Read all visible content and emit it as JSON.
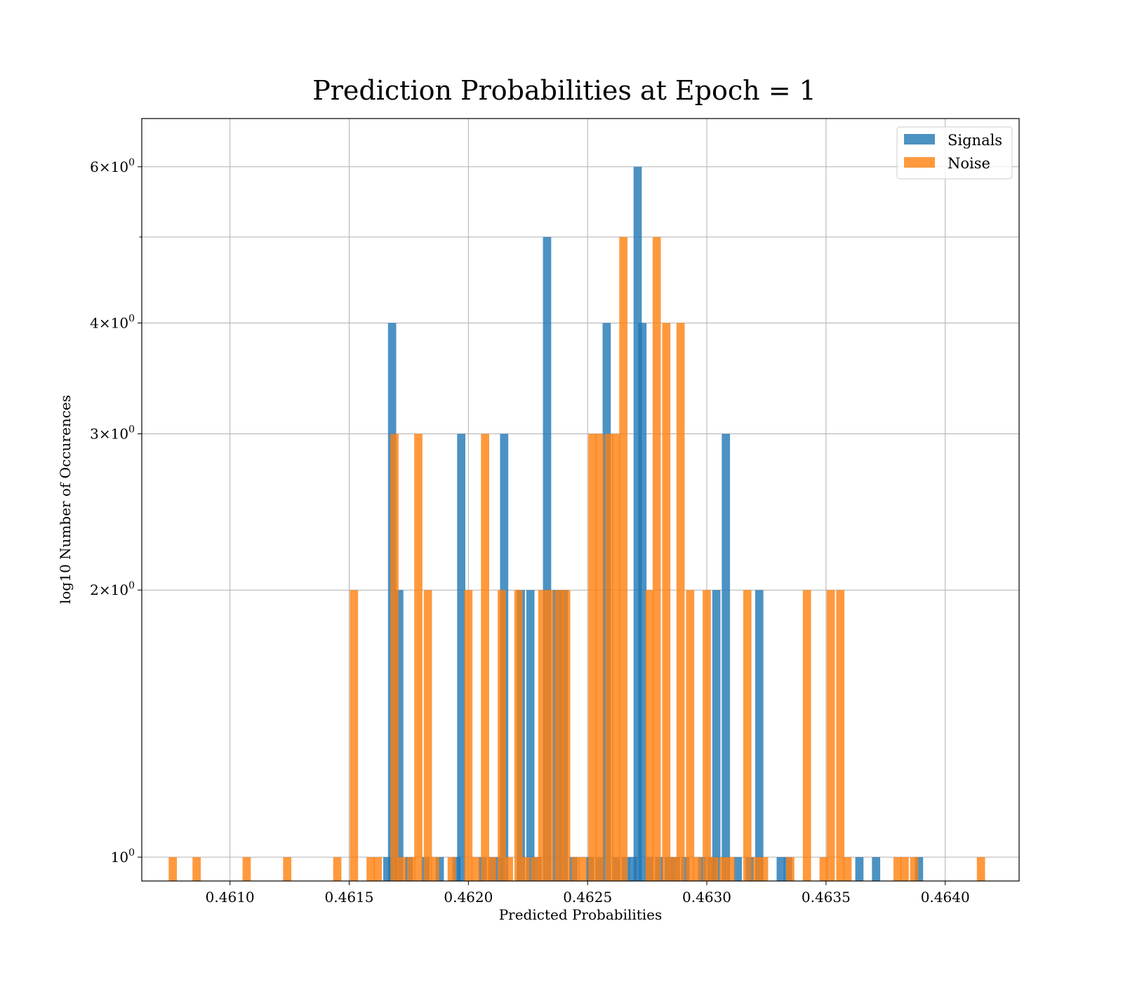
{
  "chart_data": {
    "type": "bar",
    "title": "Prediction Probabilities at Epoch = 1",
    "xlabel": "Predicted Probabilities",
    "ylabel": "log10 Number of Occurences",
    "x_scale": "linear",
    "y_scale": "log",
    "xlim": [
      0.46063,
      0.46431
    ],
    "ylim": [
      0.94,
      6.8
    ],
    "x_ticks": [
      0.461,
      0.4615,
      0.462,
      0.4625,
      0.463,
      0.4635,
      0.464
    ],
    "x_tick_labels": [
      "0.4610",
      "0.4615",
      "0.4620",
      "0.4625",
      "0.4630",
      "0.4635",
      "0.4640"
    ],
    "y_ticks": [
      1,
      2,
      3,
      4,
      6
    ],
    "y_tick_labels": [
      {
        "mantissa": "",
        "base": "10",
        "exp": "0"
      },
      {
        "mantissa": "2",
        "base": "10",
        "exp": "0"
      },
      {
        "mantissa": "3",
        "base": "10",
        "exp": "0"
      },
      {
        "mantissa": "4",
        "base": "10",
        "exp": "0"
      },
      {
        "mantissa": "6",
        "base": "10",
        "exp": "0"
      }
    ],
    "y_minor_ticks": [
      5
    ],
    "grid": true,
    "legend_position": "top-right",
    "series": [
      {
        "name": "Signals",
        "color": "#1f77b4",
        "opacity": 0.8,
        "bin_width": 3.45e-05,
        "bins": [
          [
            0.46166,
            1
          ],
          [
            0.46168,
            4
          ],
          [
            0.46171,
            2
          ],
          [
            0.46175,
            1
          ],
          [
            0.46182,
            1
          ],
          [
            0.46188,
            1
          ],
          [
            0.46195,
            1
          ],
          [
            0.46197,
            3
          ],
          [
            0.46206,
            1
          ],
          [
            0.4621,
            1
          ],
          [
            0.46213,
            1
          ],
          [
            0.46215,
            3
          ],
          [
            0.46222,
            2
          ],
          [
            0.46226,
            2
          ],
          [
            0.46229,
            1
          ],
          [
            0.46233,
            5
          ],
          [
            0.46237,
            2
          ],
          [
            0.4624,
            2
          ],
          [
            0.46244,
            1
          ],
          [
            0.46251,
            1
          ],
          [
            0.46255,
            1
          ],
          [
            0.46258,
            4
          ],
          [
            0.46262,
            1
          ],
          [
            0.46266,
            1
          ],
          [
            0.46269,
            1
          ],
          [
            0.46271,
            6
          ],
          [
            0.46273,
            4
          ],
          [
            0.46276,
            1
          ],
          [
            0.4628,
            1
          ],
          [
            0.46284,
            1
          ],
          [
            0.46287,
            1
          ],
          [
            0.46291,
            1
          ],
          [
            0.46298,
            1
          ],
          [
            0.46302,
            1
          ],
          [
            0.46304,
            2
          ],
          [
            0.46308,
            3
          ],
          [
            0.46313,
            1
          ],
          [
            0.46318,
            1
          ],
          [
            0.46322,
            2
          ],
          [
            0.46331,
            1
          ],
          [
            0.46334,
            1
          ],
          [
            0.46364,
            1
          ],
          [
            0.46371,
            1
          ],
          [
            0.46389,
            1
          ]
        ]
      },
      {
        "name": "Noise",
        "color": "#ff7f0e",
        "opacity": 0.8,
        "bin_width": 3.45e-05,
        "bins": [
          [
            0.46076,
            1
          ],
          [
            0.46086,
            1
          ],
          [
            0.46107,
            1
          ],
          [
            0.46124,
            1
          ],
          [
            0.46145,
            1
          ],
          [
            0.46152,
            2
          ],
          [
            0.46159,
            1
          ],
          [
            0.46162,
            1
          ],
          [
            0.46169,
            3
          ],
          [
            0.46172,
            1
          ],
          [
            0.46176,
            1
          ],
          [
            0.46179,
            3
          ],
          [
            0.46183,
            2
          ],
          [
            0.46186,
            1
          ],
          [
            0.46193,
            1
          ],
          [
            0.462,
            2
          ],
          [
            0.46203,
            1
          ],
          [
            0.46207,
            3
          ],
          [
            0.4621,
            1
          ],
          [
            0.46214,
            2
          ],
          [
            0.46217,
            1
          ],
          [
            0.46221,
            2
          ],
          [
            0.46224,
            1
          ],
          [
            0.46228,
            1
          ],
          [
            0.46231,
            2
          ],
          [
            0.46234,
            2
          ],
          [
            0.46238,
            2
          ],
          [
            0.46241,
            2
          ],
          [
            0.46245,
            1
          ],
          [
            0.46248,
            1
          ],
          [
            0.46252,
            3
          ],
          [
            0.46255,
            3
          ],
          [
            0.46259,
            3
          ],
          [
            0.46262,
            3
          ],
          [
            0.46265,
            5
          ],
          [
            0.46276,
            2
          ],
          [
            0.46279,
            5
          ],
          [
            0.46283,
            4
          ],
          [
            0.46286,
            1
          ],
          [
            0.46289,
            4
          ],
          [
            0.46293,
            2
          ],
          [
            0.46296,
            1
          ],
          [
            0.463,
            2
          ],
          [
            0.46303,
            1
          ],
          [
            0.46307,
            1
          ],
          [
            0.4631,
            1
          ],
          [
            0.46317,
            2
          ],
          [
            0.46321,
            1
          ],
          [
            0.46324,
            1
          ],
          [
            0.46335,
            1
          ],
          [
            0.46342,
            2
          ],
          [
            0.46349,
            1
          ],
          [
            0.46352,
            2
          ],
          [
            0.46356,
            2
          ],
          [
            0.46359,
            1
          ],
          [
            0.4638,
            1
          ],
          [
            0.46383,
            1
          ],
          [
            0.46387,
            1
          ],
          [
            0.46415,
            1
          ]
        ]
      }
    ]
  }
}
